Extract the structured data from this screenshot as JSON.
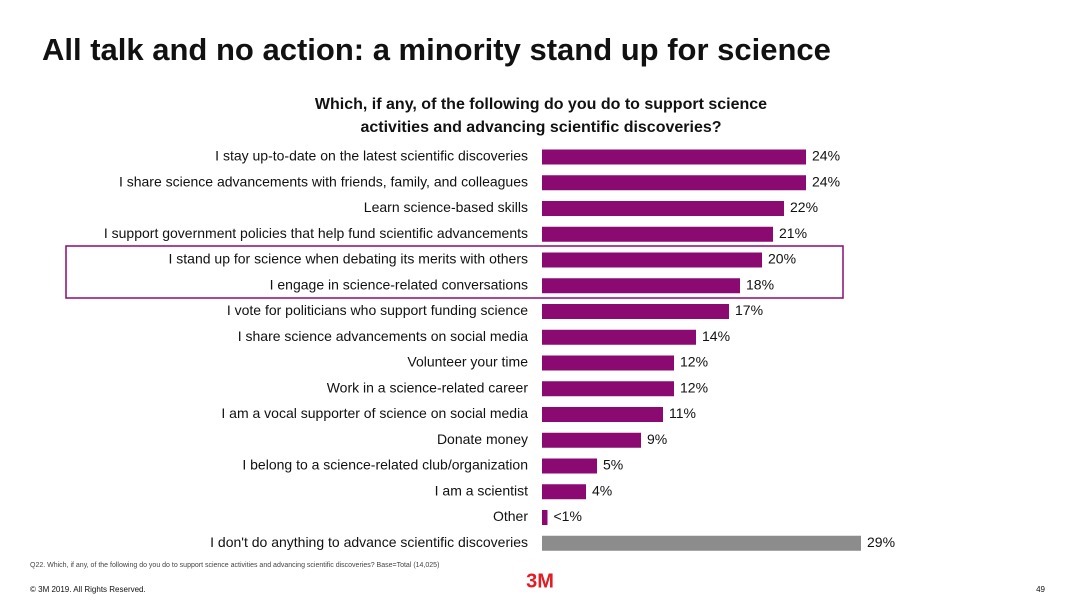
{
  "chart_data": {
    "type": "bar",
    "orientation": "horizontal",
    "title": "All talk and no action: a minority stand up for science",
    "subtitle": [
      "Which, if any, of the following do you do to support science",
      "activities and advancing scientific discoveries?"
    ],
    "categories": [
      "I stay up-to-date on the latest scientific discoveries",
      "I share science advancements with friends, family, and colleagues",
      "Learn science-based skills",
      "I support government policies that help fund scientific advancements",
      "I stand up for science when debating its merits with others",
      "I engage in science-related conversations",
      "I vote for politicians who support funding science",
      "I share science advancements on social media",
      "Volunteer your time",
      "Work in a science-related career",
      "I am a vocal supporter of science on social media",
      "Donate money",
      "I belong to a science-related club/organization",
      "I am a scientist",
      "Other",
      "I don't do anything to advance scientific discoveries"
    ],
    "values": [
      24,
      24,
      22,
      21,
      20,
      18,
      17,
      14,
      12,
      12,
      11,
      9,
      5,
      4,
      0.5,
      29
    ],
    "value_labels": [
      "24%",
      "24%",
      "22%",
      "21%",
      "20%",
      "18%",
      "17%",
      "14%",
      "12%",
      "12%",
      "11%",
      "9%",
      "5%",
      "4%",
      "<1%",
      "29%"
    ],
    "colors": [
      "#8a0a72",
      "#8a0a72",
      "#8a0a72",
      "#8a0a72",
      "#8a0a72",
      "#8a0a72",
      "#8a0a72",
      "#8a0a72",
      "#8a0a72",
      "#8a0a72",
      "#8a0a72",
      "#8a0a72",
      "#8a0a72",
      "#8a0a72",
      "#8a0a72",
      "#8c8c8c"
    ],
    "note": "Q22. Which, if any, of the following do you do to support science activities and advancing scientific discoveries? Base=Total (14,025)",
    "footer": "© 3M 2019.   All Rights Reserved.",
    "logo": "3M",
    "page_number": "49"
  }
}
